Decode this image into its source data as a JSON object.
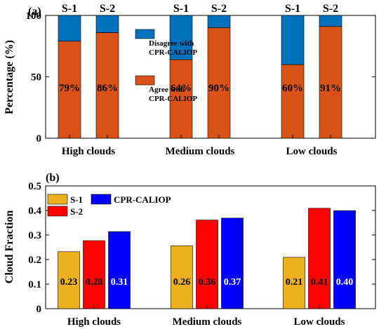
{
  "chart_data": [
    {
      "type": "bar",
      "stacked": true,
      "panel_label": "(a)",
      "ylabel": "Percentage (%)",
      "ylim": [
        0,
        100
      ],
      "yticks": [
        0,
        50,
        100
      ],
      "groups": [
        "High clouds",
        "Medium clouds",
        "Low clouds"
      ],
      "bar_labels": [
        "S-1",
        "S-2"
      ],
      "series": [
        {
          "name": "Agree with\nCPR-CALIOP",
          "color": "#D95319",
          "values": [
            [
              79,
              86
            ],
            [
              64,
              90
            ],
            [
              60,
              91
            ]
          ],
          "labels": [
            [
              "79%",
              "86%"
            ],
            [
              "64%",
              "90%"
            ],
            [
              "60%",
              "91%"
            ]
          ]
        },
        {
          "name": "Disagree with\nCPR-CALIOP",
          "color": "#0072BD",
          "values": [
            [
              21,
              14
            ],
            [
              36,
              10
            ],
            [
              40,
              9
            ]
          ]
        }
      ],
      "legend": "inside-center"
    },
    {
      "type": "bar",
      "panel_label": "(b)",
      "ylabel": "Cloud Fraction",
      "ylim": [
        0,
        0.5
      ],
      "yticks": [
        "0",
        "0.1",
        "0.2",
        "0.3",
        "0.4",
        "0.5"
      ],
      "categories": [
        "High clouds",
        "Medium clouds",
        "Low clouds"
      ],
      "series": [
        {
          "name": "S-1",
          "color": "#EDB120",
          "label_color": "#000000",
          "values": [
            0.232,
            0.256,
            0.209
          ],
          "labels": [
            "0.23",
            "0.26",
            "0.21"
          ]
        },
        {
          "name": "S-2",
          "color": "#FF0000",
          "label_color": "#000000",
          "values": [
            0.277,
            0.361,
            0.409
          ],
          "labels": [
            "0.28",
            "0.36",
            "0.41"
          ]
        },
        {
          "name": "CPR-CALIOP",
          "color": "#0000FF",
          "label_color": "#FFFFFF",
          "values": [
            0.314,
            0.369,
            0.399
          ],
          "labels": [
            "0.31",
            "0.37",
            "0.40"
          ]
        }
      ],
      "legend": "top-left"
    }
  ]
}
